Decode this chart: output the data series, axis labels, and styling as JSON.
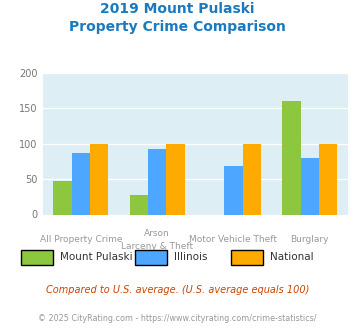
{
  "title_line1": "2019 Mount Pulaski",
  "title_line2": "Property Crime Comparison",
  "cat_labels_line1": [
    "All Property Crime",
    "Arson",
    "Motor Vehicle Theft",
    "Burglary"
  ],
  "cat_labels_line2": [
    "",
    "Larceny & Theft",
    "",
    ""
  ],
  "series": {
    "Mount Pulaski": [
      47,
      27,
      0,
      160
    ],
    "Illinois": [
      87,
      93,
      69,
      79
    ],
    "National": [
      100,
      100,
      100,
      100
    ]
  },
  "colors": {
    "Mount Pulaski": "#8dc63f",
    "Illinois": "#4da6ff",
    "National": "#ffaa00"
  },
  "ylim": [
    0,
    200
  ],
  "yticks": [
    0,
    50,
    100,
    150,
    200
  ],
  "plot_bg": "#ddeef5",
  "title_color": "#1a7abf",
  "footer_text": "Compared to U.S. average. (U.S. average equals 100)",
  "footer_color": "#cc4400",
  "copyright_text": "© 2025 CityRating.com - https://www.cityrating.com/crime-statistics/",
  "copyright_color": "#999999"
}
